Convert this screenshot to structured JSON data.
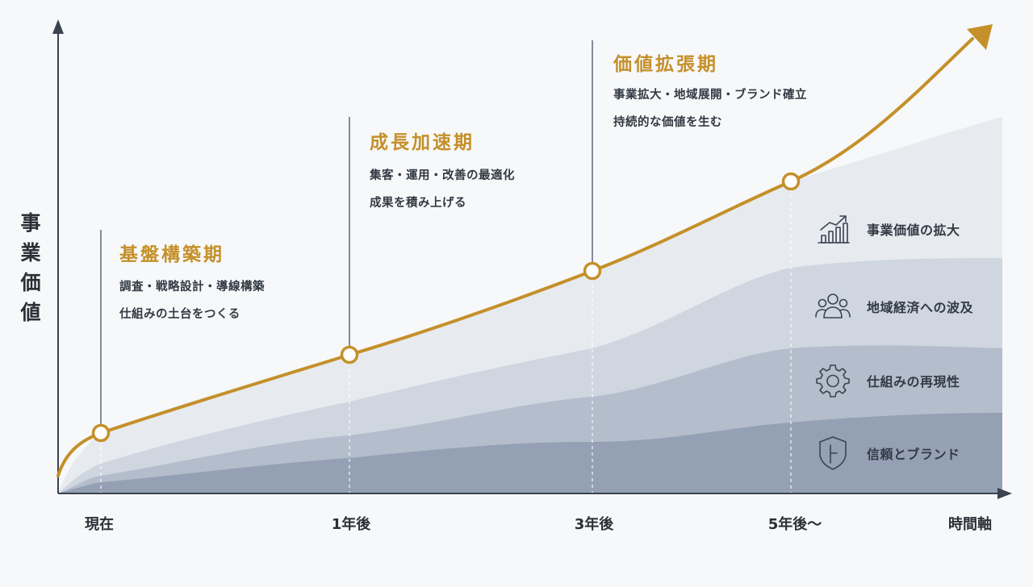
{
  "y_axis_label": "事業価値",
  "x_axis_label": "時間軸",
  "x_ticks": [
    "現在",
    "1年後",
    "3年後",
    "5年後〜"
  ],
  "phases": [
    {
      "title": "基盤構築期",
      "lines": [
        "調査・戦略設計・導線構築",
        "仕組みの土台をつくる"
      ]
    },
    {
      "title": "成長加速期",
      "lines": [
        "集客・運用・改善の最適化",
        "成果を積み上げる"
      ]
    },
    {
      "title": "価値拡張期",
      "lines": [
        "事業拡大・地域展開・ブランド確立",
        "持続的な価値を生む"
      ]
    }
  ],
  "legend": [
    {
      "label": "事業価値の拡大",
      "icon": "bar-chart-growth-icon"
    },
    {
      "label": "地域経済への波及",
      "icon": "people-group-icon"
    },
    {
      "label": "仕組みの再現性",
      "icon": "gear-icon"
    },
    {
      "label": "信頼とブランド",
      "icon": "shield-icon"
    }
  ],
  "colors": {
    "accent": "#c5902a",
    "layer1": "#e7ebf0",
    "layer2": "#cfd6e0",
    "layer3": "#b3bdcb",
    "layer4": "#94a1b4",
    "axis": "#3b4350"
  }
}
